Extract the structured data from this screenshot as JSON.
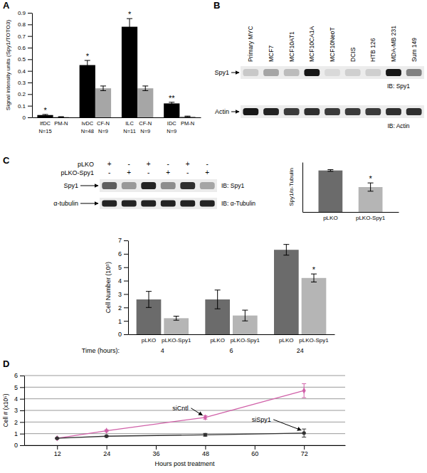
{
  "chart_data": [
    {
      "panel": "A",
      "type": "bar",
      "ylabel": "Signal intensity units (Spy1/TOTO3)",
      "categories": [
        "IfDC",
        "PM-N",
        "IvDC",
        "CF-N",
        "ILC",
        "CF-N",
        "IDC",
        "PM-N"
      ],
      "sublabels": [
        "N=15",
        null,
        "N=48",
        "N=9",
        "N=11",
        "N=9",
        "N=9",
        null
      ],
      "values": [
        0.02,
        0.004,
        0.45,
        0.25,
        0.78,
        0.25,
        0.12,
        0.008
      ],
      "errors": [
        0.005,
        0.002,
        0.04,
        0.02,
        0.07,
        0.02,
        0.01,
        0.003
      ],
      "significance": [
        "*",
        null,
        "*",
        null,
        "*",
        null,
        "**",
        null
      ],
      "colors": [
        "#000000",
        "#a6a6a6",
        "#000000",
        "#a6a6a6",
        "#000000",
        "#a6a6a6",
        "#000000",
        "#a6a6a6"
      ],
      "ylim": [
        0,
        0.9
      ],
      "yticks": [
        0,
        0.1,
        0.2,
        0.3,
        0.4,
        0.5,
        0.6,
        0.7,
        0.8,
        0.9
      ]
    },
    {
      "panel": "B",
      "type": "blot",
      "lanes": [
        "Primary MYC",
        "MCF7",
        "MCF10AT1",
        "MCF10CA1A",
        "MCF10NeoT",
        "DCIS",
        "HTB 126",
        "MDA-MB 231",
        "Sum 149"
      ],
      "series": [
        {
          "name": "Spy1",
          "label": "IB: Spy1",
          "values": [
            0.15,
            0.3,
            0.2,
            0.9,
            0.08,
            0.12,
            0.12,
            0.9,
            0.45
          ]
        },
        {
          "name": "Actin",
          "label": "IB: Actin",
          "values": [
            0.9,
            0.85,
            0.75,
            0.8,
            0.75,
            0.75,
            0.75,
            0.8,
            0.8
          ]
        }
      ]
    },
    {
      "panel": "C",
      "type": "blot",
      "conditions": [
        {
          "name": "pLKO",
          "marks": [
            "+",
            "-",
            "+",
            "-",
            "+",
            "-"
          ]
        },
        {
          "name": "pLKO-Spy1",
          "marks": [
            "-",
            "+",
            "-",
            "+",
            "-",
            "+"
          ]
        }
      ],
      "series": [
        {
          "name": "Spy1",
          "label": "IB: Spy1",
          "values": [
            0.6,
            0.35,
            0.85,
            0.4,
            0.8,
            0.3
          ]
        },
        {
          "name": "α-tubulin",
          "label": "IB: α-Tubulin",
          "values": [
            0.85,
            0.85,
            0.85,
            0.85,
            0.85,
            0.85
          ]
        }
      ]
    },
    {
      "type": "bar",
      "ylabel": "Spy1/α-Tubulin",
      "categories": [
        "pLKO",
        "pLKO-Spy1"
      ],
      "values": [
        1.0,
        0.6
      ],
      "errors": [
        0.02,
        0.1
      ],
      "significance": [
        null,
        "*"
      ],
      "colors": [
        "#6b6b6b",
        "#b5b5b5"
      ],
      "ylim": [
        0,
        1.2
      ],
      "tick_labels": false
    },
    {
      "type": "bar",
      "ylabel": "Cell Number (10⁵)",
      "xlabel": "Time (hours):",
      "categories": [
        "pLKO",
        "pLKO-Spy1",
        "pLKO",
        "pLKO-Spy1",
        "pLKO",
        "pLKO-Spy1"
      ],
      "groups": [
        "4",
        "6",
        "24"
      ],
      "values": [
        2.6,
        1.2,
        2.6,
        1.4,
        6.3,
        4.2
      ],
      "errors": [
        0.6,
        0.15,
        0.7,
        0.4,
        0.4,
        0.3
      ],
      "significance": [
        null,
        null,
        null,
        null,
        null,
        "*"
      ],
      "colors": [
        "#6b6b6b",
        "#b5b5b5",
        "#6b6b6b",
        "#b5b5b5",
        "#6b6b6b",
        "#b5b5b5"
      ],
      "ylim": [
        0,
        7
      ],
      "yticks": [
        0,
        1,
        2,
        3,
        4,
        5,
        6,
        7
      ]
    },
    {
      "panel": "D",
      "type": "line",
      "ylabel": "Cell # (x10⁵)",
      "xlabel": "Hours post treatment",
      "x": [
        12,
        24,
        48,
        72
      ],
      "series": [
        {
          "name": "siCntl",
          "color": "#d060a8",
          "marker": "diamond",
          "values": [
            0.6,
            1.25,
            2.4,
            4.7
          ],
          "errors": [
            0.05,
            0.08,
            0.15,
            0.6
          ]
        },
        {
          "name": "siSpy1",
          "color": "#333333",
          "marker": "circle",
          "values": [
            0.6,
            0.78,
            0.9,
            1.05
          ],
          "errors": [
            0.03,
            0.05,
            0.12,
            0.35
          ]
        }
      ],
      "xlim": [
        4,
        82
      ],
      "ylim": [
        0,
        6
      ],
      "xticks": [
        12,
        24,
        36,
        48,
        60,
        72
      ],
      "yticks": [
        0,
        1,
        2,
        3,
        4,
        5,
        6
      ],
      "grid": true
    }
  ]
}
